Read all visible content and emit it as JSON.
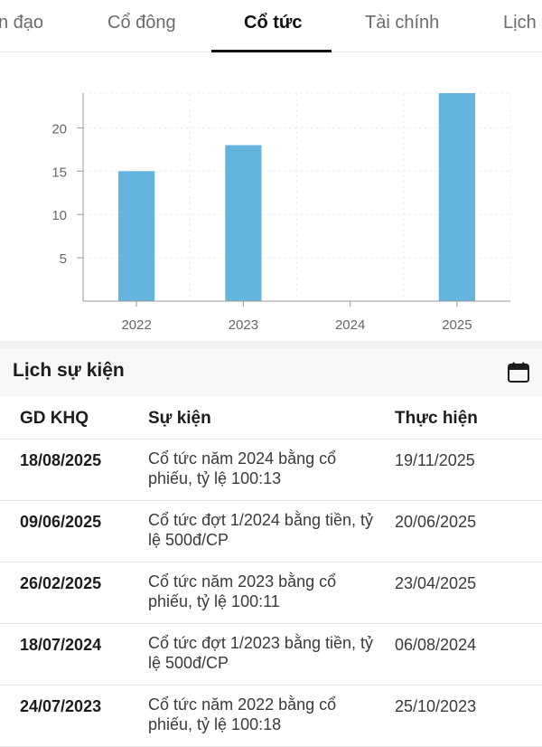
{
  "tabs": [
    {
      "label": "n đạo",
      "active": false
    },
    {
      "label": "Cổ đông",
      "active": false
    },
    {
      "label": "Cổ tức",
      "active": true
    },
    {
      "label": "Tài chính",
      "active": false
    },
    {
      "label": "Lịch",
      "active": false
    }
  ],
  "chart_data": {
    "type": "bar",
    "categories": [
      "2022",
      "2023",
      "2024",
      "2025"
    ],
    "values": [
      15,
      18,
      0,
      24
    ],
    "ylim": [
      0,
      24
    ],
    "yticks": [
      5,
      10,
      15,
      20
    ],
    "grid": true,
    "bar_color": "#63b5dd"
  },
  "events": {
    "title": "Lịch sự kiện",
    "icon": "calendar-icon",
    "columns": [
      "GD KHQ",
      "Sự kiện",
      "Thực hiện"
    ],
    "rows": [
      {
        "date": "18/08/2025",
        "event": "Cổ tức năm 2024 bằng cổ phiếu, tỷ lệ 100:13",
        "done": "19/11/2025"
      },
      {
        "date": "09/06/2025",
        "event": "Cổ tức đợt 1/2024 bằng tiền, tỷ lệ 500đ/CP",
        "done": "20/06/2025"
      },
      {
        "date": "26/02/2025",
        "event": "Cổ tức năm 2023 bằng cổ phiếu, tỷ lệ 100:11",
        "done": "23/04/2025"
      },
      {
        "date": "18/07/2024",
        "event": "Cổ tức đợt 1/2023 bằng tiền, tỷ lệ 500đ/CP",
        "done": "06/08/2024"
      },
      {
        "date": "24/07/2023",
        "event": "Cổ tức năm 2022 bằng cổ phiếu, tỷ lệ 100:18",
        "done": "25/10/2023"
      }
    ]
  }
}
